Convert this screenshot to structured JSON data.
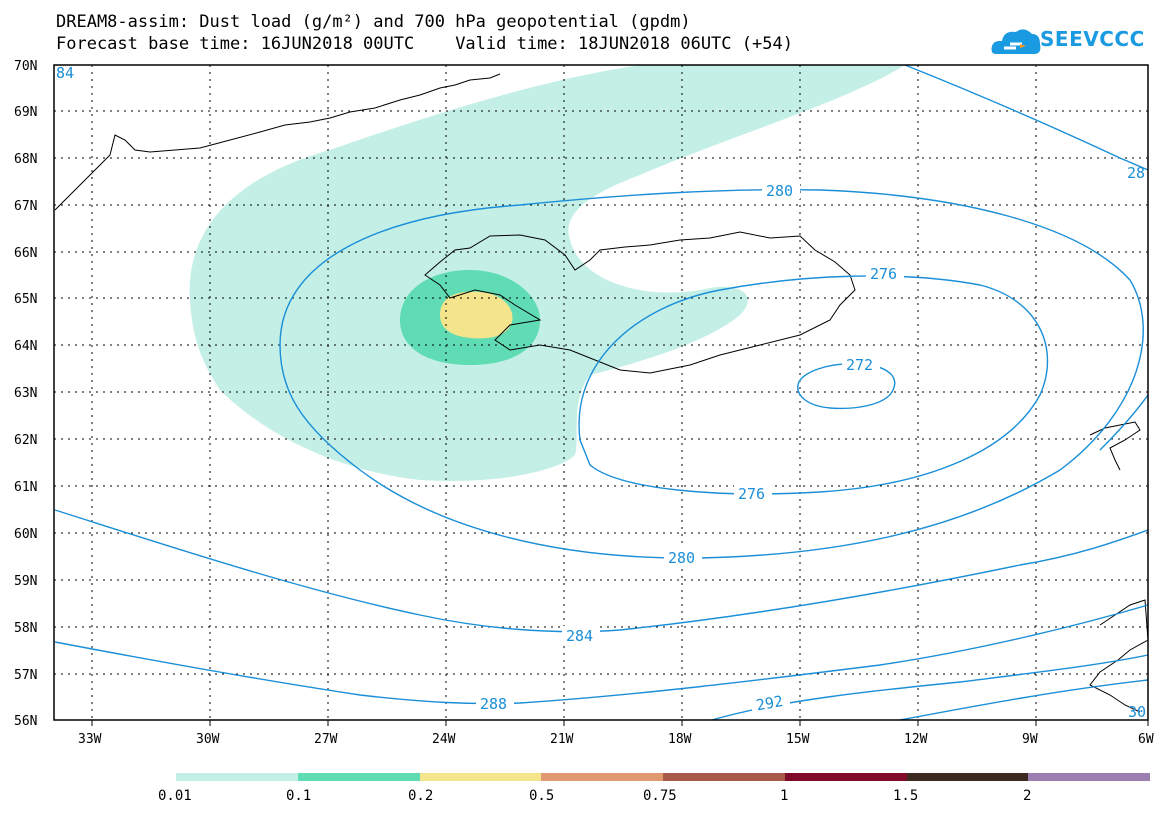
{
  "title": {
    "line1": "DREAM8-assim: Dust load (g/m²) and 700 hPa geopotential (gpdm)",
    "line2_left": "Forecast base time: 16JUN2018 00UTC",
    "line2_right": "Valid time: 18JUN2018 06UTC (+54)"
  },
  "logo": {
    "text": "SEEVCCC"
  },
  "axes": {
    "lat_labels": [
      "70N",
      "69N",
      "68N",
      "67N",
      "66N",
      "65N",
      "64N",
      "63N",
      "62N",
      "61N",
      "60N",
      "59N",
      "58N",
      "57N",
      "56N"
    ],
    "lon_labels": [
      "33W",
      "30W",
      "27W",
      "24W",
      "21W",
      "18W",
      "15W",
      "12W",
      "9W",
      "6W"
    ]
  },
  "contours": {
    "labels": [
      "280",
      "276",
      "272",
      "276",
      "280",
      "284",
      "288",
      "292",
      "28",
      "84",
      "30"
    ]
  },
  "legend": {
    "colors": [
      "#c4efe7",
      "#5fdcb3",
      "#f4e48c",
      "#e09a72",
      "#a85a4a",
      "#800a2a",
      "#3c2a20",
      "#9c7fb0"
    ],
    "labels": [
      "0.01",
      "0.1",
      "0.2",
      "0.5",
      "0.75",
      "1",
      "1.5",
      "2"
    ]
  },
  "colors": {
    "contour": "#1a8fd8",
    "dust_low": "#c4efe7",
    "dust_mid": "#5fdcb3",
    "dust_high": "#f4e48c"
  }
}
